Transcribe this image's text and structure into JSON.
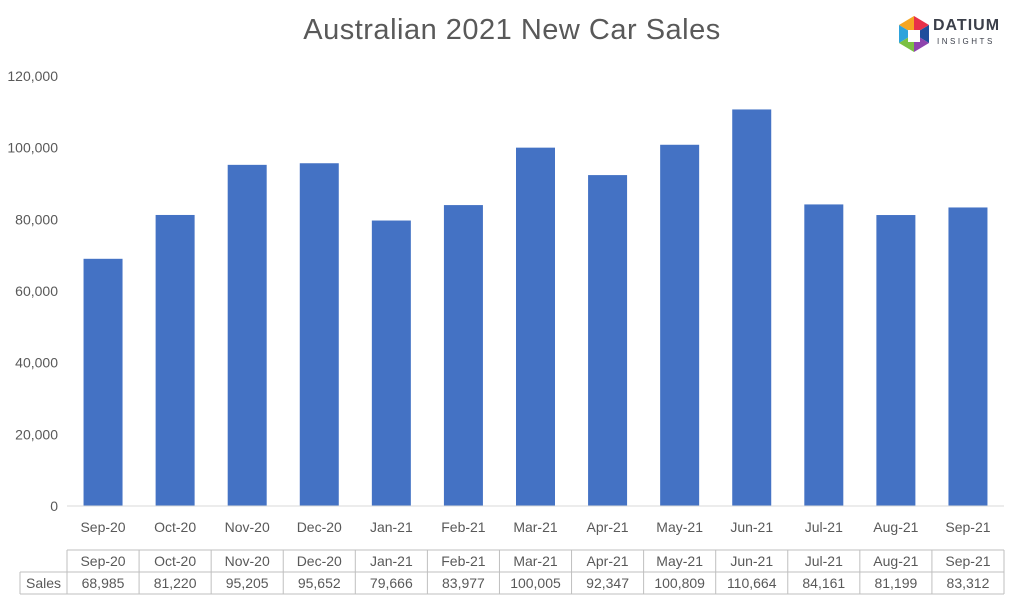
{
  "chart_data": {
    "type": "bar",
    "title": "Australian 2021 New Car Sales",
    "categories": [
      "Sep-20",
      "Oct-20",
      "Nov-20",
      "Dec-20",
      "Jan-21",
      "Feb-21",
      "Mar-21",
      "Apr-21",
      "May-21",
      "Jun-21",
      "Jul-21",
      "Aug-21",
      "Sep-21"
    ],
    "series": [
      {
        "name": "Sales",
        "values": [
          68985,
          81220,
          95205,
          95652,
          79666,
          83977,
          100005,
          92347,
          100809,
          110664,
          84161,
          81199,
          83312
        ],
        "labels": [
          "68,985",
          "81,220",
          "95,205",
          "95,652",
          "79,666",
          "83,977",
          "100,005",
          "92,347",
          "100,809",
          "110,664",
          "84,161",
          "81,199",
          "83,312"
        ],
        "color": "#4472c4"
      }
    ],
    "ylim": [
      0,
      120000
    ],
    "yticks": [
      0,
      20000,
      40000,
      60000,
      80000,
      100000,
      120000
    ],
    "ytick_labels": [
      "0",
      "20,000",
      "40,000",
      "60,000",
      "80,000",
      "100,000",
      "120,000"
    ],
    "grid": false,
    "legend": "none",
    "data_table": true
  },
  "logo": {
    "name": "DATIUM",
    "subtitle": "INSIGHTS"
  },
  "colors": {
    "bar": "#4472c4",
    "axis": "#d9d9d9",
    "text": "#595959",
    "table_border": "#bfbfbf"
  }
}
